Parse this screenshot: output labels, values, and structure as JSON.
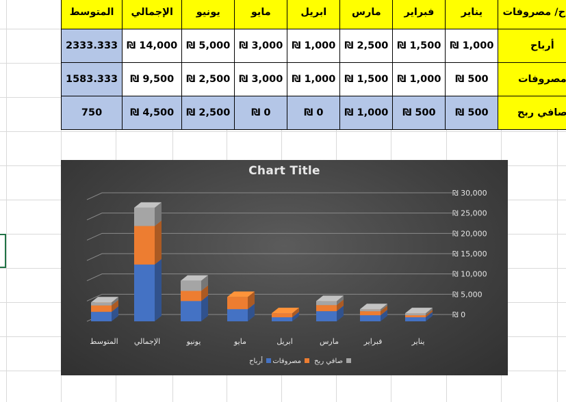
{
  "table": {
    "header": [
      "أرباح/ مصروفات",
      "يناير",
      "فبراير",
      "مارس",
      "ابريل",
      "مايو",
      "يونيو",
      "الإجمالي",
      "المتوسط"
    ],
    "rows": [
      {
        "label": "أرباح",
        "values": [
          "₪ 1,000",
          "₪ 1,500",
          "₪ 2,500",
          "₪ 1,000",
          "₪ 3,000",
          "₪ 5,000",
          "₪ 14,000"
        ],
        "average": "2333.333"
      },
      {
        "label": "مصروفات",
        "values": [
          "₪ 500",
          "₪ 1,000",
          "₪ 1,500",
          "₪ 1,000",
          "₪ 3,000",
          "₪ 2,500",
          "₪ 9,500"
        ],
        "average": "1583.333"
      },
      {
        "label": "صافي ربح",
        "values": [
          "₪ 500",
          "₪ 500",
          "₪ 1,000",
          "₪ 0",
          "₪ 0",
          "₪ 2,500",
          "₪ 4,500"
        ],
        "average": "750"
      }
    ]
  },
  "chart_data": {
    "type": "bar",
    "stacked": true,
    "title": "Chart Title",
    "categories": [
      "يناير",
      "فبراير",
      "مارس",
      "ابريل",
      "مايو",
      "يونيو",
      "الإجمالي",
      "المتوسط"
    ],
    "series": [
      {
        "name": "أرباح",
        "values": [
          1000,
          1500,
          2500,
          1000,
          3000,
          5000,
          14000,
          2333.333
        ],
        "color": "#4472c4"
      },
      {
        "name": "مصروفات",
        "values": [
          500,
          1000,
          1500,
          1000,
          3000,
          2500,
          9500,
          1583.333
        ],
        "color": "#ed7d31"
      },
      {
        "name": "صافي ربح",
        "values": [
          500,
          500,
          1000,
          0,
          0,
          2500,
          4500,
          750
        ],
        "color": "#a5a5a5"
      }
    ],
    "y_ticks": [
      "₪ 0",
      "₪ 5,000",
      "₪ 10,000",
      "₪ 15,000",
      "₪ 20,000",
      "₪ 25,000",
      "₪ 30,000"
    ],
    "ylim": [
      0,
      30000
    ],
    "grid": true,
    "legend_position": "bottom",
    "y_axis_side": "right",
    "reversed_categories": true
  }
}
